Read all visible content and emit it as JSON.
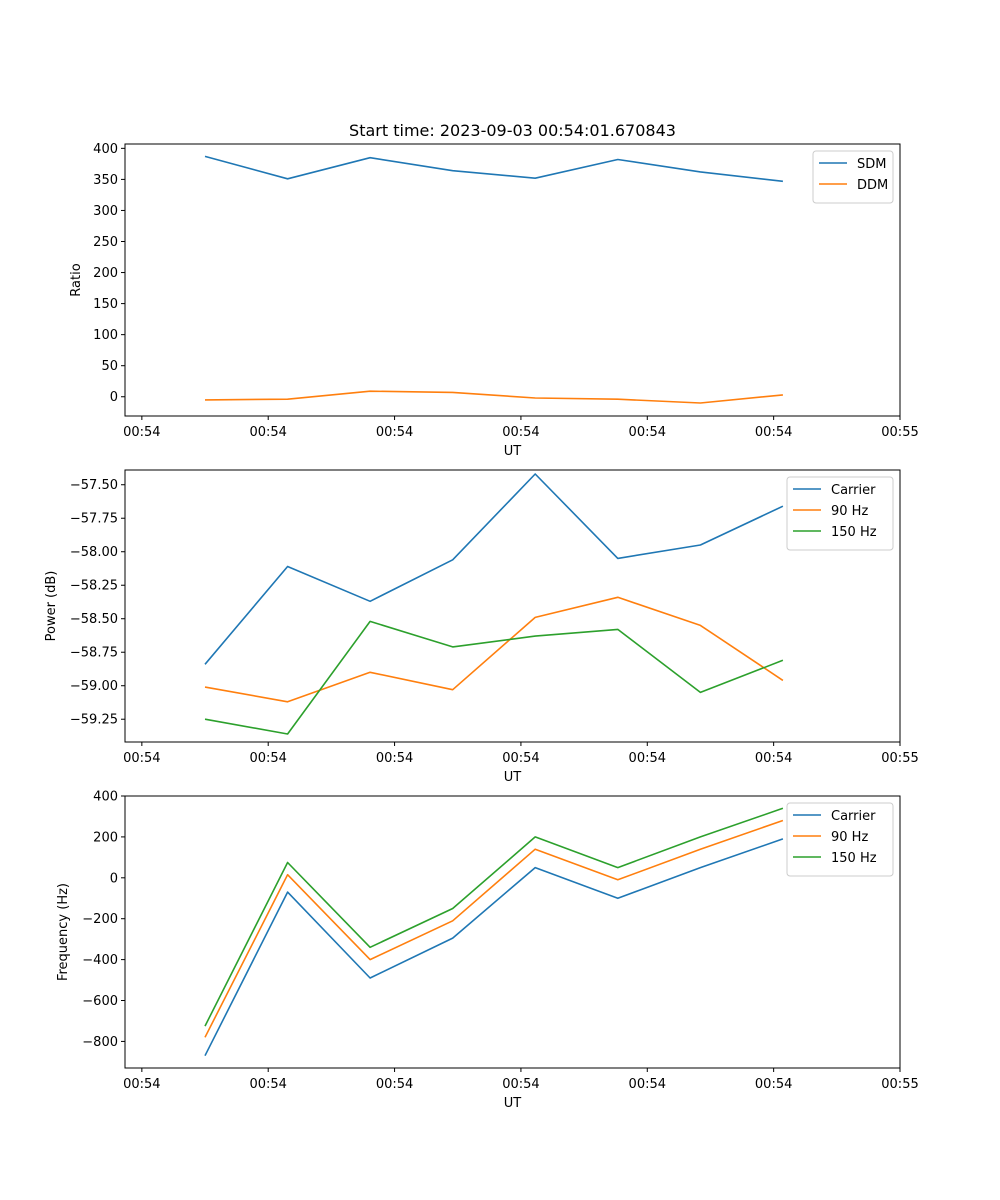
{
  "chart_data": [
    {
      "type": "line",
      "title": "Start time: 2023-09-03 00:54:01.670843",
      "xlabel": "UT",
      "ylabel": "Ratio",
      "ylim": [
        -31,
        407
      ],
      "yticks": [
        0,
        50,
        100,
        150,
        200,
        250,
        300,
        350,
        400
      ],
      "ytick_labels": [
        "0",
        "50",
        "100",
        "150",
        "200",
        "250",
        "300",
        "350",
        "400"
      ],
      "xlim": [
        -0.2,
        9.0
      ],
      "xticks": [
        0,
        1.5,
        3,
        4.5,
        6,
        7.5,
        9
      ],
      "xtick_labels": [
        "00:54",
        "00:54",
        "00:54",
        "00:54",
        "00:54",
        "00:54",
        "00:55"
      ],
      "x": [
        0.75,
        1.73,
        2.71,
        3.69,
        4.67,
        5.65,
        6.63,
        7.61
      ],
      "legend_position": "top-right",
      "series": [
        {
          "name": "SDM",
          "color": "#1f77b4",
          "values": [
            387,
            351,
            385,
            364,
            352,
            382,
            362,
            347
          ]
        },
        {
          "name": "DDM",
          "color": "#ff7f0e",
          "values": [
            -5,
            -4,
            9,
            7,
            -2,
            -4,
            -10,
            3
          ]
        }
      ]
    },
    {
      "type": "line",
      "title": "",
      "xlabel": "UT",
      "ylabel": "Power (dB)",
      "ylim": [
        -59.42,
        -57.39
      ],
      "yticks": [
        -59.25,
        -59.0,
        -58.75,
        -58.5,
        -58.25,
        -58.0,
        -57.75,
        -57.5
      ],
      "ytick_labels": [
        "−59.25",
        "−59.00",
        "−58.75",
        "−58.50",
        "−58.25",
        "−58.00",
        "−57.75",
        "−57.50"
      ],
      "xlim": [
        -0.2,
        9.0
      ],
      "xticks": [
        0,
        1.5,
        3,
        4.5,
        6,
        7.5,
        9
      ],
      "xtick_labels": [
        "00:54",
        "00:54",
        "00:54",
        "00:54",
        "00:54",
        "00:54",
        "00:55"
      ],
      "x": [
        0.75,
        1.73,
        2.71,
        3.69,
        4.67,
        5.65,
        6.63,
        7.61
      ],
      "legend_position": "top-right",
      "series": [
        {
          "name": "Carrier",
          "color": "#1f77b4",
          "values": [
            -58.84,
            -58.11,
            -58.37,
            -58.06,
            -57.42,
            -58.05,
            -57.95,
            -57.66
          ]
        },
        {
          "name": "90 Hz",
          "color": "#ff7f0e",
          "values": [
            -59.01,
            -59.12,
            -58.9,
            -59.03,
            -58.49,
            -58.34,
            -58.55,
            -58.96
          ]
        },
        {
          "name": "150 Hz",
          "color": "#2ca02c",
          "values": [
            -59.25,
            -59.36,
            -58.52,
            -58.71,
            -58.63,
            -58.58,
            -59.05,
            -58.81
          ]
        }
      ]
    },
    {
      "type": "line",
      "title": "",
      "xlabel": "UT",
      "ylabel": "Frequency (Hz)",
      "ylim": [
        -930,
        400
      ],
      "yticks": [
        -800,
        -600,
        -400,
        -200,
        0,
        200,
        400
      ],
      "ytick_labels": [
        "−800",
        "−600",
        "−400",
        "−200",
        "0",
        "200",
        "400"
      ],
      "xlim": [
        -0.2,
        9.0
      ],
      "xticks": [
        0,
        1.5,
        3,
        4.5,
        6,
        7.5,
        9
      ],
      "xtick_labels": [
        "00:54",
        "00:54",
        "00:54",
        "00:54",
        "00:54",
        "00:54",
        "00:55"
      ],
      "x": [
        0.75,
        1.73,
        2.71,
        3.69,
        4.67,
        5.65,
        6.63,
        7.61
      ],
      "legend_position": "top-right",
      "series": [
        {
          "name": "Carrier",
          "color": "#1f77b4",
          "values": [
            -870,
            -70,
            -490,
            -295,
            50,
            -100,
            50,
            190
          ]
        },
        {
          "name": "90 Hz",
          "color": "#ff7f0e",
          "values": [
            -780,
            15,
            -400,
            -210,
            140,
            -10,
            140,
            280
          ]
        },
        {
          "name": "150 Hz",
          "color": "#2ca02c",
          "values": [
            -725,
            75,
            -340,
            -150,
            200,
            50,
            200,
            340
          ]
        }
      ]
    }
  ]
}
